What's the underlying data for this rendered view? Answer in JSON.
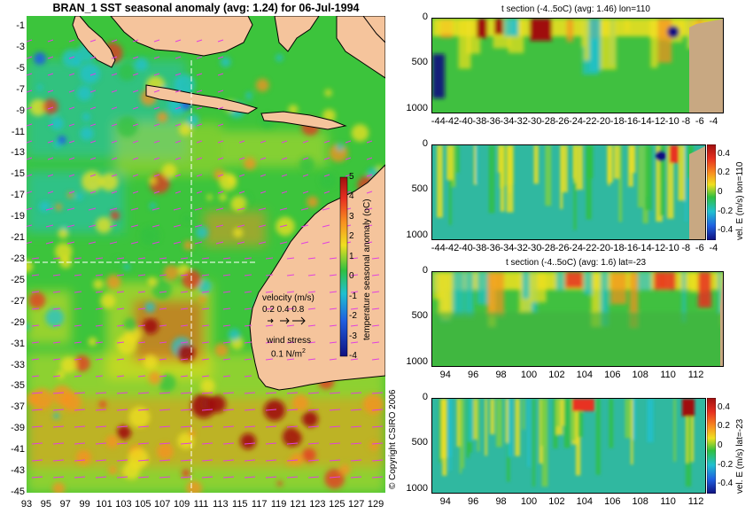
{
  "chart_data": [
    {
      "type": "heatmap",
      "id": "map",
      "title": "BRAN_1  SST seasonal anomaly (avg: 1.24) for 06-Jul-1994",
      "x_ticks": [
        "93",
        "95",
        "97",
        "99",
        "101",
        "103",
        "105",
        "107",
        "109",
        "111",
        "113",
        "115",
        "117",
        "119",
        "121",
        "123",
        "125",
        "127",
        "129"
      ],
      "y_ticks": [
        "-1",
        "-3",
        "-5",
        "-7",
        "-9",
        "-11",
        "-13",
        "-15",
        "-17",
        "-19",
        "-21",
        "-23",
        "-25",
        "-27",
        "-29",
        "-31",
        "-33",
        "-35",
        "-37",
        "-39",
        "-41",
        "-43",
        "-45"
      ],
      "xlim": [
        93,
        130
      ],
      "ylim": [
        -45,
        0
      ],
      "colorbar": {
        "label": "temperature seasonal anomaly (oC)",
        "ticks": [
          "5",
          "4",
          "3",
          "2",
          "1",
          "0",
          "-1",
          "-2",
          "-3",
          "-4"
        ],
        "range": [
          -4,
          5
        ]
      },
      "legend": {
        "velocity_title": "velocity (m/s)",
        "velocity_values": "0.2 0.4 0.8",
        "wind_title": "wind stress",
        "wind_value": "0.1 N/m",
        "wind_exp": "2"
      },
      "section_lines": {
        "lon": 110,
        "lat": -23
      }
    },
    {
      "type": "heatmap",
      "id": "t_lon",
      "title": "t section (-4..5oC) (avg: 1.46) lon=110",
      "x_ticks": [
        "-44",
        "-42",
        "-40",
        "-38",
        "-36",
        "-34",
        "-32",
        "-30",
        "-28",
        "-26",
        "-24",
        "-22",
        "-20",
        "-18",
        "-16",
        "-14",
        "-12",
        "-10",
        "-8",
        "-6",
        "-4"
      ],
      "y_ticks": [
        "0",
        "500",
        "1000"
      ],
      "xlim": [
        -45,
        -2.5
      ],
      "ylim": [
        1050,
        0
      ]
    },
    {
      "type": "heatmap",
      "id": "u_lon",
      "title": "",
      "x_ticks": [
        "-44",
        "-42",
        "-40",
        "-38",
        "-36",
        "-34",
        "-32",
        "-30",
        "-28",
        "-26",
        "-24",
        "-22",
        "-20",
        "-18",
        "-16",
        "-14",
        "-12",
        "-10",
        "-8",
        "-6",
        "-4"
      ],
      "y_ticks": [
        "0",
        "500",
        "1000"
      ],
      "xlim": [
        -45,
        -2.5
      ],
      "ylim": [
        1050,
        0
      ],
      "colorbar": {
        "label": "vel. E (m/s) lon=110",
        "ticks": [
          "0.4",
          "0.2",
          "0",
          "-0.2",
          "-0.4"
        ],
        "range": [
          -0.5,
          0.5
        ]
      }
    },
    {
      "type": "heatmap",
      "id": "t_lat",
      "title": "t section (-4..5oC) (avg: 1.6) lat=-23",
      "x_ticks": [
        "94",
        "96",
        "98",
        "100",
        "102",
        "104",
        "106",
        "108",
        "110",
        "112"
      ],
      "y_ticks": [
        "0",
        "500",
        "1000"
      ],
      "xlim": [
        93,
        114
      ],
      "ylim": [
        1050,
        0
      ]
    },
    {
      "type": "heatmap",
      "id": "u_lat",
      "title": "",
      "x_ticks": [
        "94",
        "96",
        "98",
        "100",
        "102",
        "104",
        "106",
        "108",
        "110",
        "112"
      ],
      "y_ticks": [
        "0",
        "500",
        "1000"
      ],
      "xlim": [
        93,
        114
      ],
      "ylim": [
        1050,
        0
      ],
      "colorbar": {
        "label": "vel. E (m/s) lat=-23",
        "ticks": [
          "0.4",
          "0.2",
          "0",
          "-0.2",
          "-0.4"
        ],
        "range": [
          -0.5,
          0.5
        ]
      }
    }
  ],
  "copyright": "© Copyright CSIRO 2006",
  "colors": {
    "land": "#f5c49c",
    "seafloor": "#c8a882",
    "deep_red": "#a01010",
    "red": "#e83020",
    "orange": "#f89020",
    "yellow": "#f0e020",
    "green": "#30c040",
    "cyan": "#20c0d0",
    "blue": "#2060e0",
    "navy": "#101080",
    "arrow": "#e040e0"
  }
}
